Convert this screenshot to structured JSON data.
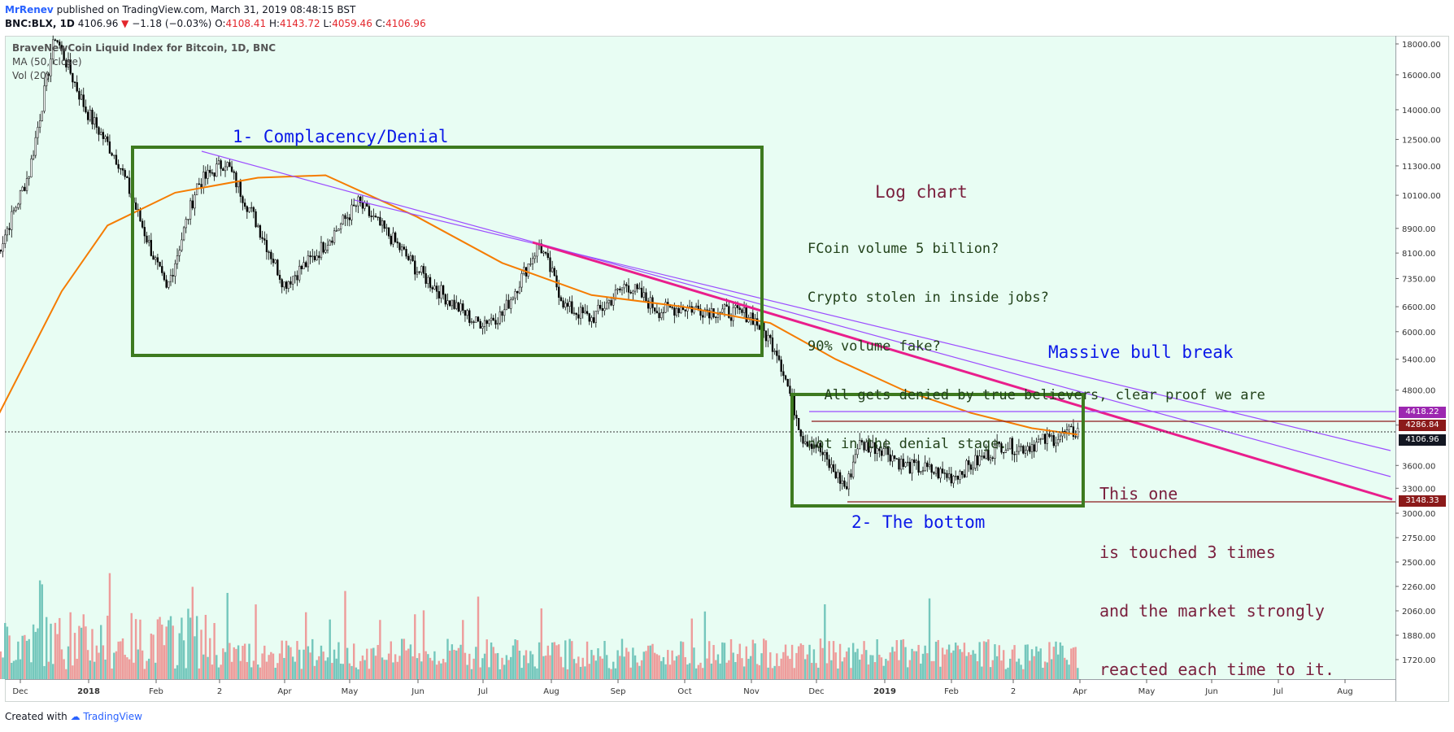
{
  "header": {
    "author": "MrRenev",
    "published": "published on TradingView.com, March 31, 2019 08:48:15 BST",
    "symbol": "BNC:BLX, 1D",
    "last": "4106.96",
    "change": "−1.18 (−0.03%)",
    "o_label": "O:",
    "o": "4108.41",
    "h_label": "H:",
    "h": "4143.72",
    "l_label": "L:",
    "l": "4059.46",
    "c_label": "C:",
    "c": "4106.96"
  },
  "legend": {
    "title": "BraveNewCoin Liquid Index for Bitcoin, 1D, BNC",
    "ma": "MA (50, close)",
    "vol": "Vol (20)"
  },
  "footer": {
    "created": "Created with",
    "brand": "TradingView"
  },
  "annotations": {
    "phase1": "1- Complacency/Denial",
    "phase2": "2- The bottom",
    "log_title": "Log chart",
    "note_lines": [
      "FCoin volume 5 billion?",
      "Crypto stolen in inside jobs?",
      "90% volume fake?",
      "  All gets denied by true believers, clear proof we are",
      "not in the denial stage."
    ],
    "bull_break": "Massive bull break",
    "touch_lines": [
      "This one",
      "is touched 3 times",
      "and the market strongly",
      "reacted each time to it."
    ]
  },
  "price_badges": [
    {
      "label": "4418.22",
      "color": "#9c27b0"
    },
    {
      "label": "4286.84",
      "color": "#8b1a1a"
    },
    {
      "label": "4106.96",
      "color": "#131722"
    },
    {
      "label": "3148.33",
      "color": "#8b1a1a"
    }
  ],
  "colors": {
    "background": "#e8fdf3",
    "up": "#000000",
    "ma_line": "#f57c00",
    "trend_main": "#e91e8c",
    "trend_thin": "#9c4dff",
    "box": "#3d7a1f",
    "vol_up": "#5fbdb2",
    "vol_down": "#ee8b8b",
    "annotation_blue": "#0a18e8",
    "annotation_green": "#22421a",
    "annotation_maroon": "#7a1f3d"
  },
  "chart_data": {
    "type": "line",
    "title": "BraveNewCoin Liquid Index for Bitcoin, 1D, BNC",
    "scale": "log",
    "ylim": [
      1600,
      18600
    ],
    "y_ticks": [
      18000,
      16000,
      14000,
      12500,
      11300,
      10100,
      8900,
      8100,
      7350,
      6600,
      6000,
      5400,
      4800,
      4200,
      3600,
      3300,
      3000,
      2750,
      2500,
      2260,
      2060,
      1880,
      1720
    ],
    "y_tick_labels": [
      "18000.00",
      "16000.00",
      "14000.00",
      "12500.00",
      "11300.00",
      "10100.00",
      "8900.00",
      "8100.00",
      "7350.00",
      "6600.00",
      "6000.00",
      "5400.00",
      "4800.00",
      "4200.00",
      "3600.00",
      "3300.00",
      "3000.00",
      "2750.00",
      "2500.00",
      "2260.00",
      "2060.00",
      "1880.00",
      "1720.00"
    ],
    "x_ticks": [
      "Dec",
      "2018",
      "Feb",
      "2",
      "Apr",
      "May",
      "Jun",
      "Jul",
      "Aug",
      "Sep",
      "Oct",
      "Nov",
      "Dec",
      "2019",
      "Feb",
      "2",
      "Apr",
      "May",
      "Jun",
      "Jul",
      "Aug"
    ],
    "x_tick_index": [
      0,
      1,
      2,
      3,
      4,
      5,
      6,
      7,
      8,
      9,
      10,
      11,
      12,
      13,
      14,
      15,
      16,
      17,
      18,
      19,
      20
    ],
    "series": [
      {
        "name": "BLX",
        "x": [
          "2017-11-20",
          "2017-12-05",
          "2017-12-17",
          "2017-12-31",
          "2018-01-15",
          "2018-02-06",
          "2018-02-20",
          "2018-03-05",
          "2018-03-20",
          "2018-04-01",
          "2018-04-15",
          "2018-05-05",
          "2018-05-20",
          "2018-06-01",
          "2018-06-15",
          "2018-06-28",
          "2018-07-10",
          "2018-07-27",
          "2018-08-08",
          "2018-08-20",
          "2018-09-05",
          "2018-09-20",
          "2018-10-01",
          "2018-10-15",
          "2018-11-01",
          "2018-11-13",
          "2018-11-20",
          "2018-11-25",
          "2018-12-01",
          "2018-12-07",
          "2018-12-15",
          "2018-12-20",
          "2019-01-01",
          "2019-01-10",
          "2019-01-20",
          "2019-02-01",
          "2019-02-10",
          "2019-02-24",
          "2019-03-05",
          "2019-03-15",
          "2019-03-31"
        ],
        "values": [
          8000,
          11000,
          18600,
          14000,
          11500,
          7000,
          10500,
          11500,
          9000,
          7200,
          8000,
          9800,
          8600,
          7600,
          6800,
          6200,
          6400,
          8400,
          6600,
          6300,
          7200,
          6500,
          6600,
          6500,
          6400,
          5600,
          4600,
          4000,
          3900,
          3600,
          3300,
          3900,
          3850,
          3600,
          3550,
          3450,
          3600,
          3900,
          3850,
          3950,
          4106.96
        ]
      },
      {
        "name": "MA (50, close)",
        "x": [
          "2017-11-20",
          "2017-12-20",
          "2018-01-10",
          "2018-02-10",
          "2018-03-20",
          "2018-04-20",
          "2018-06-01",
          "2018-07-10",
          "2018-08-20",
          "2018-10-01",
          "2018-11-10",
          "2018-12-10",
          "2019-01-10",
          "2019-02-10",
          "2019-03-10",
          "2019-03-31"
        ],
        "values": [
          4300,
          7000,
          9000,
          10200,
          10800,
          10900,
          9300,
          7800,
          6900,
          6600,
          6200,
          5400,
          4800,
          4400,
          4150,
          4050
        ]
      }
    ],
    "horizontal_levels": [
      4418.22,
      4286.84,
      4106.96,
      3148.33
    ],
    "volume": {
      "name": "Vol (20)",
      "note": "daily volume bars, up=teal, down=red"
    }
  }
}
